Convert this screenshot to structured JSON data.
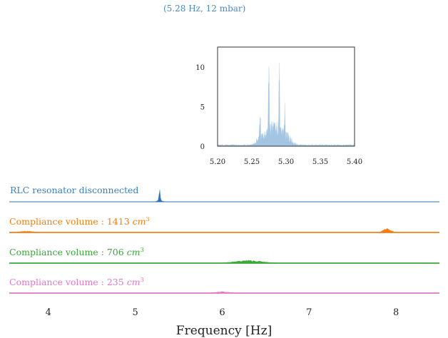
{
  "chart_data": {
    "type": "area",
    "xlabel": "Frequency [Hz]",
    "xlim": [
      3.55,
      8.5
    ],
    "x_ticks": [
      "4",
      "5",
      "6",
      "7",
      "8"
    ],
    "annotation": "(5.28 Hz, 12 mbar)",
    "series": [
      {
        "name": "RLC resonator disconnected",
        "color": "#2f73b5",
        "peaks": [
          {
            "freq": 5.28,
            "amplitude_mbar": 12,
            "width_hz": 0.02
          }
        ]
      },
      {
        "name": "Compliance volume : 1413 cm³",
        "label_text": "Compliance volume : 1413 ",
        "unit_text": "cm",
        "unit_exp": "3",
        "color": "#f07f13",
        "humps": [
          {
            "center": 3.75,
            "width": 0.15,
            "relative_height": 0.3
          },
          {
            "center": 7.9,
            "width": 0.08,
            "relative_height": 1.0
          }
        ]
      },
      {
        "name": "Compliance volume : 706 cm³",
        "label_text": "Compliance volume : 706 ",
        "unit_text": "cm",
        "unit_exp": "3",
        "color": "#3aa83a",
        "humps": [
          {
            "center": 6.3,
            "width": 0.3,
            "relative_height": 0.6
          }
        ]
      },
      {
        "name": "Compliance volume : 235 cm³",
        "label_text": "Compliance volume : 235 ",
        "unit_text": "cm",
        "unit_exp": "3",
        "color": "#e377c2",
        "humps": [
          {
            "center": 6.0,
            "width": 0.15,
            "relative_height": 0.3
          }
        ]
      }
    ],
    "inset": {
      "xlim": [
        5.2,
        5.4
      ],
      "ylim": [
        0,
        12.5
      ],
      "x_ticks": [
        "5.20",
        "5.25",
        "5.30",
        "5.35",
        "5.40"
      ],
      "y_ticks": [
        "0",
        "5",
        "10"
      ],
      "color": "#a3c4e3",
      "peaks": [
        {
          "freq": 5.275,
          "amplitude_mbar": 12
        },
        {
          "freq": 5.29,
          "amplitude_mbar": 11.8
        },
        {
          "freq": 5.298,
          "amplitude_mbar": 6.5
        },
        {
          "freq": 5.262,
          "amplitude_mbar": 5
        }
      ]
    }
  }
}
